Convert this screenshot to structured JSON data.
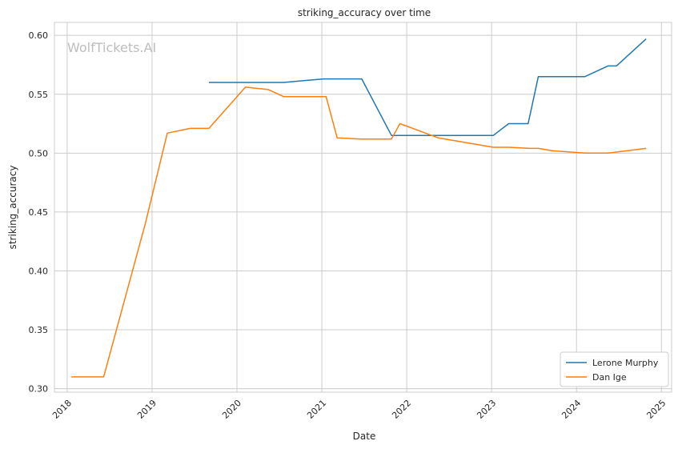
{
  "chart_data": {
    "type": "line",
    "title": "striking_accuracy over time",
    "xlabel": "Date",
    "ylabel": "striking_accuracy",
    "watermark": "WolfTickets.AI",
    "xlim": [
      2017.85,
      2025.12
    ],
    "ylim": [
      0.297,
      0.611
    ],
    "x_ticks": [
      2018,
      2019,
      2020,
      2021,
      2022,
      2023,
      2024,
      2025
    ],
    "y_ticks": [
      0.3,
      0.35,
      0.4,
      0.45,
      0.5,
      0.55,
      0.6
    ],
    "grid": true,
    "legend_position": "lower-right",
    "series": [
      {
        "name": "Lerone Murphy",
        "color": "#1f77b4",
        "points": [
          [
            2019.67,
            0.56
          ],
          [
            2020.55,
            0.56
          ],
          [
            2021.02,
            0.563
          ],
          [
            2021.47,
            0.563
          ],
          [
            2021.82,
            0.515
          ],
          [
            2023.02,
            0.515
          ],
          [
            2023.2,
            0.525
          ],
          [
            2023.43,
            0.525
          ],
          [
            2023.55,
            0.565
          ],
          [
            2024.1,
            0.565
          ],
          [
            2024.37,
            0.574
          ],
          [
            2024.47,
            0.574
          ],
          [
            2024.82,
            0.597
          ]
        ]
      },
      {
        "name": "Dan Ige",
        "color": "#ff7f0e",
        "points": [
          [
            2018.05,
            0.31
          ],
          [
            2018.43,
            0.31
          ],
          [
            2018.92,
            0.44
          ],
          [
            2019.18,
            0.517
          ],
          [
            2019.45,
            0.521
          ],
          [
            2019.67,
            0.521
          ],
          [
            2020.1,
            0.556
          ],
          [
            2020.37,
            0.554
          ],
          [
            2020.55,
            0.548
          ],
          [
            2021.05,
            0.548
          ],
          [
            2021.18,
            0.513
          ],
          [
            2021.47,
            0.512
          ],
          [
            2021.82,
            0.512
          ],
          [
            2021.92,
            0.525
          ],
          [
            2022.37,
            0.513
          ],
          [
            2023.02,
            0.505
          ],
          [
            2023.2,
            0.505
          ],
          [
            2023.45,
            0.504
          ],
          [
            2023.55,
            0.504
          ],
          [
            2023.72,
            0.502
          ],
          [
            2024.1,
            0.5
          ],
          [
            2024.37,
            0.5
          ],
          [
            2024.82,
            0.504
          ]
        ]
      }
    ]
  }
}
